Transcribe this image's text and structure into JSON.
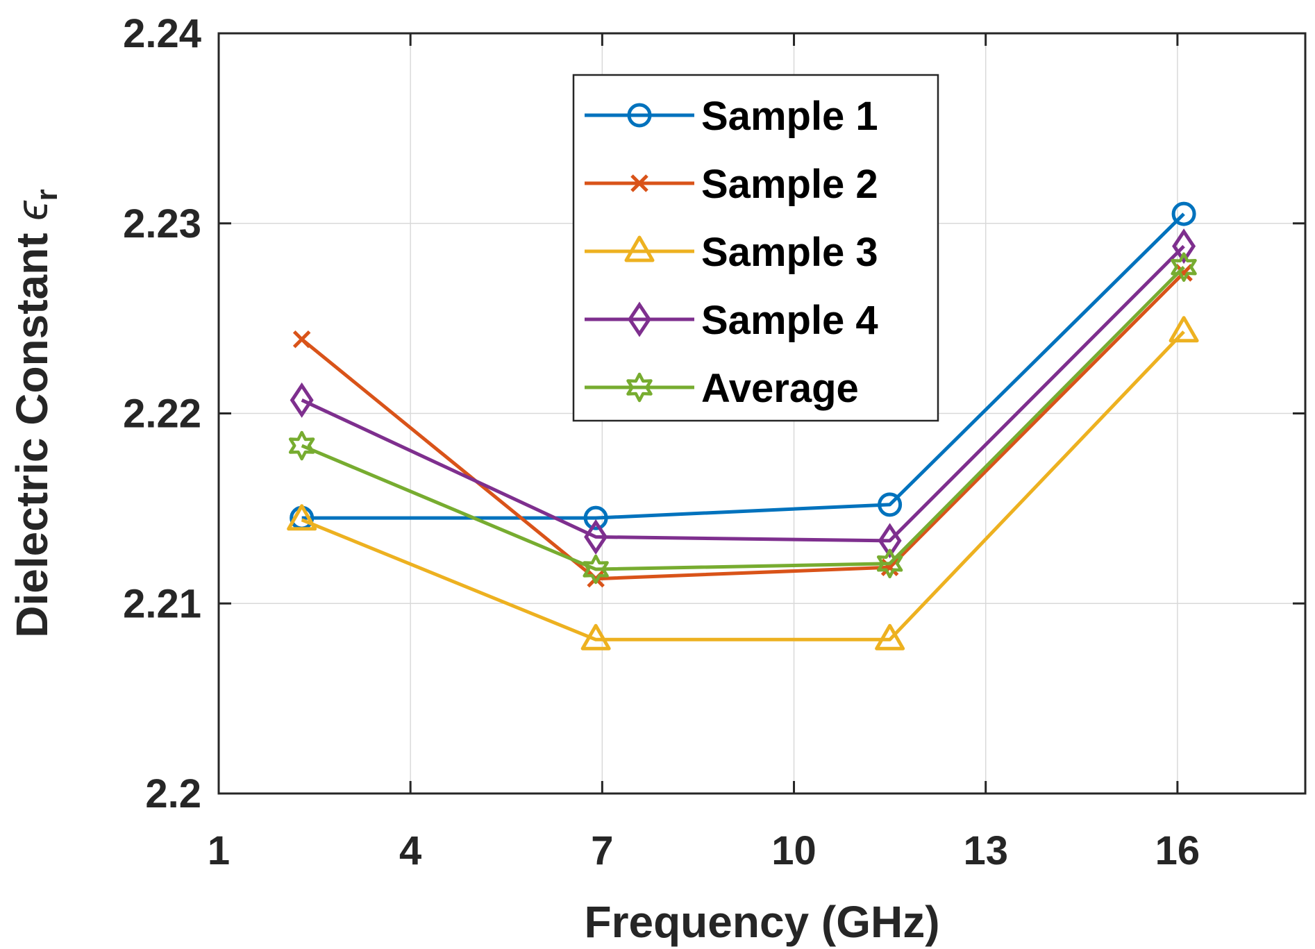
{
  "chart_data": {
    "type": "line",
    "xlabel": "Frequency (GHz)",
    "ylabel_main": "Dielectric Constant ",
    "ylabel_symbol": "ϵ",
    "ylabel_subscript": "r",
    "xlim": [
      1,
      18
    ],
    "ylim": [
      2.2,
      2.24
    ],
    "x_ticks": [
      1,
      4,
      7,
      10,
      13,
      16
    ],
    "y_ticks": [
      2.2,
      2.21,
      2.22,
      2.23,
      2.24
    ],
    "x_tick_labels": [
      "1",
      "4",
      "7",
      "10",
      "13",
      "16"
    ],
    "y_tick_labels": [
      "2.2",
      "2.21",
      "2.22",
      "2.23",
      "2.24"
    ],
    "grid": true,
    "legend_position": "top-center",
    "x": [
      2.3,
      6.9,
      11.5,
      16.1
    ],
    "series": [
      {
        "name": "Sample 1",
        "color": "#0072BD",
        "marker": "circle",
        "values": [
          2.2145,
          2.2145,
          2.2152,
          2.2305
        ]
      },
      {
        "name": "Sample 2",
        "color": "#D95319",
        "marker": "x",
        "values": [
          2.2239,
          2.2113,
          2.2119,
          2.2274
        ]
      },
      {
        "name": "Sample 3",
        "color": "#EDB120",
        "marker": "triangle",
        "values": [
          2.2144,
          2.2081,
          2.2081,
          2.2243
        ]
      },
      {
        "name": "Sample 4",
        "color": "#7E2F8E",
        "marker": "diamond",
        "values": [
          2.2207,
          2.2135,
          2.2133,
          2.2288
        ]
      },
      {
        "name": "Average",
        "color": "#77AC30",
        "marker": "hexagram",
        "values": [
          2.2183,
          2.2118,
          2.2121,
          2.2277
        ]
      }
    ]
  }
}
